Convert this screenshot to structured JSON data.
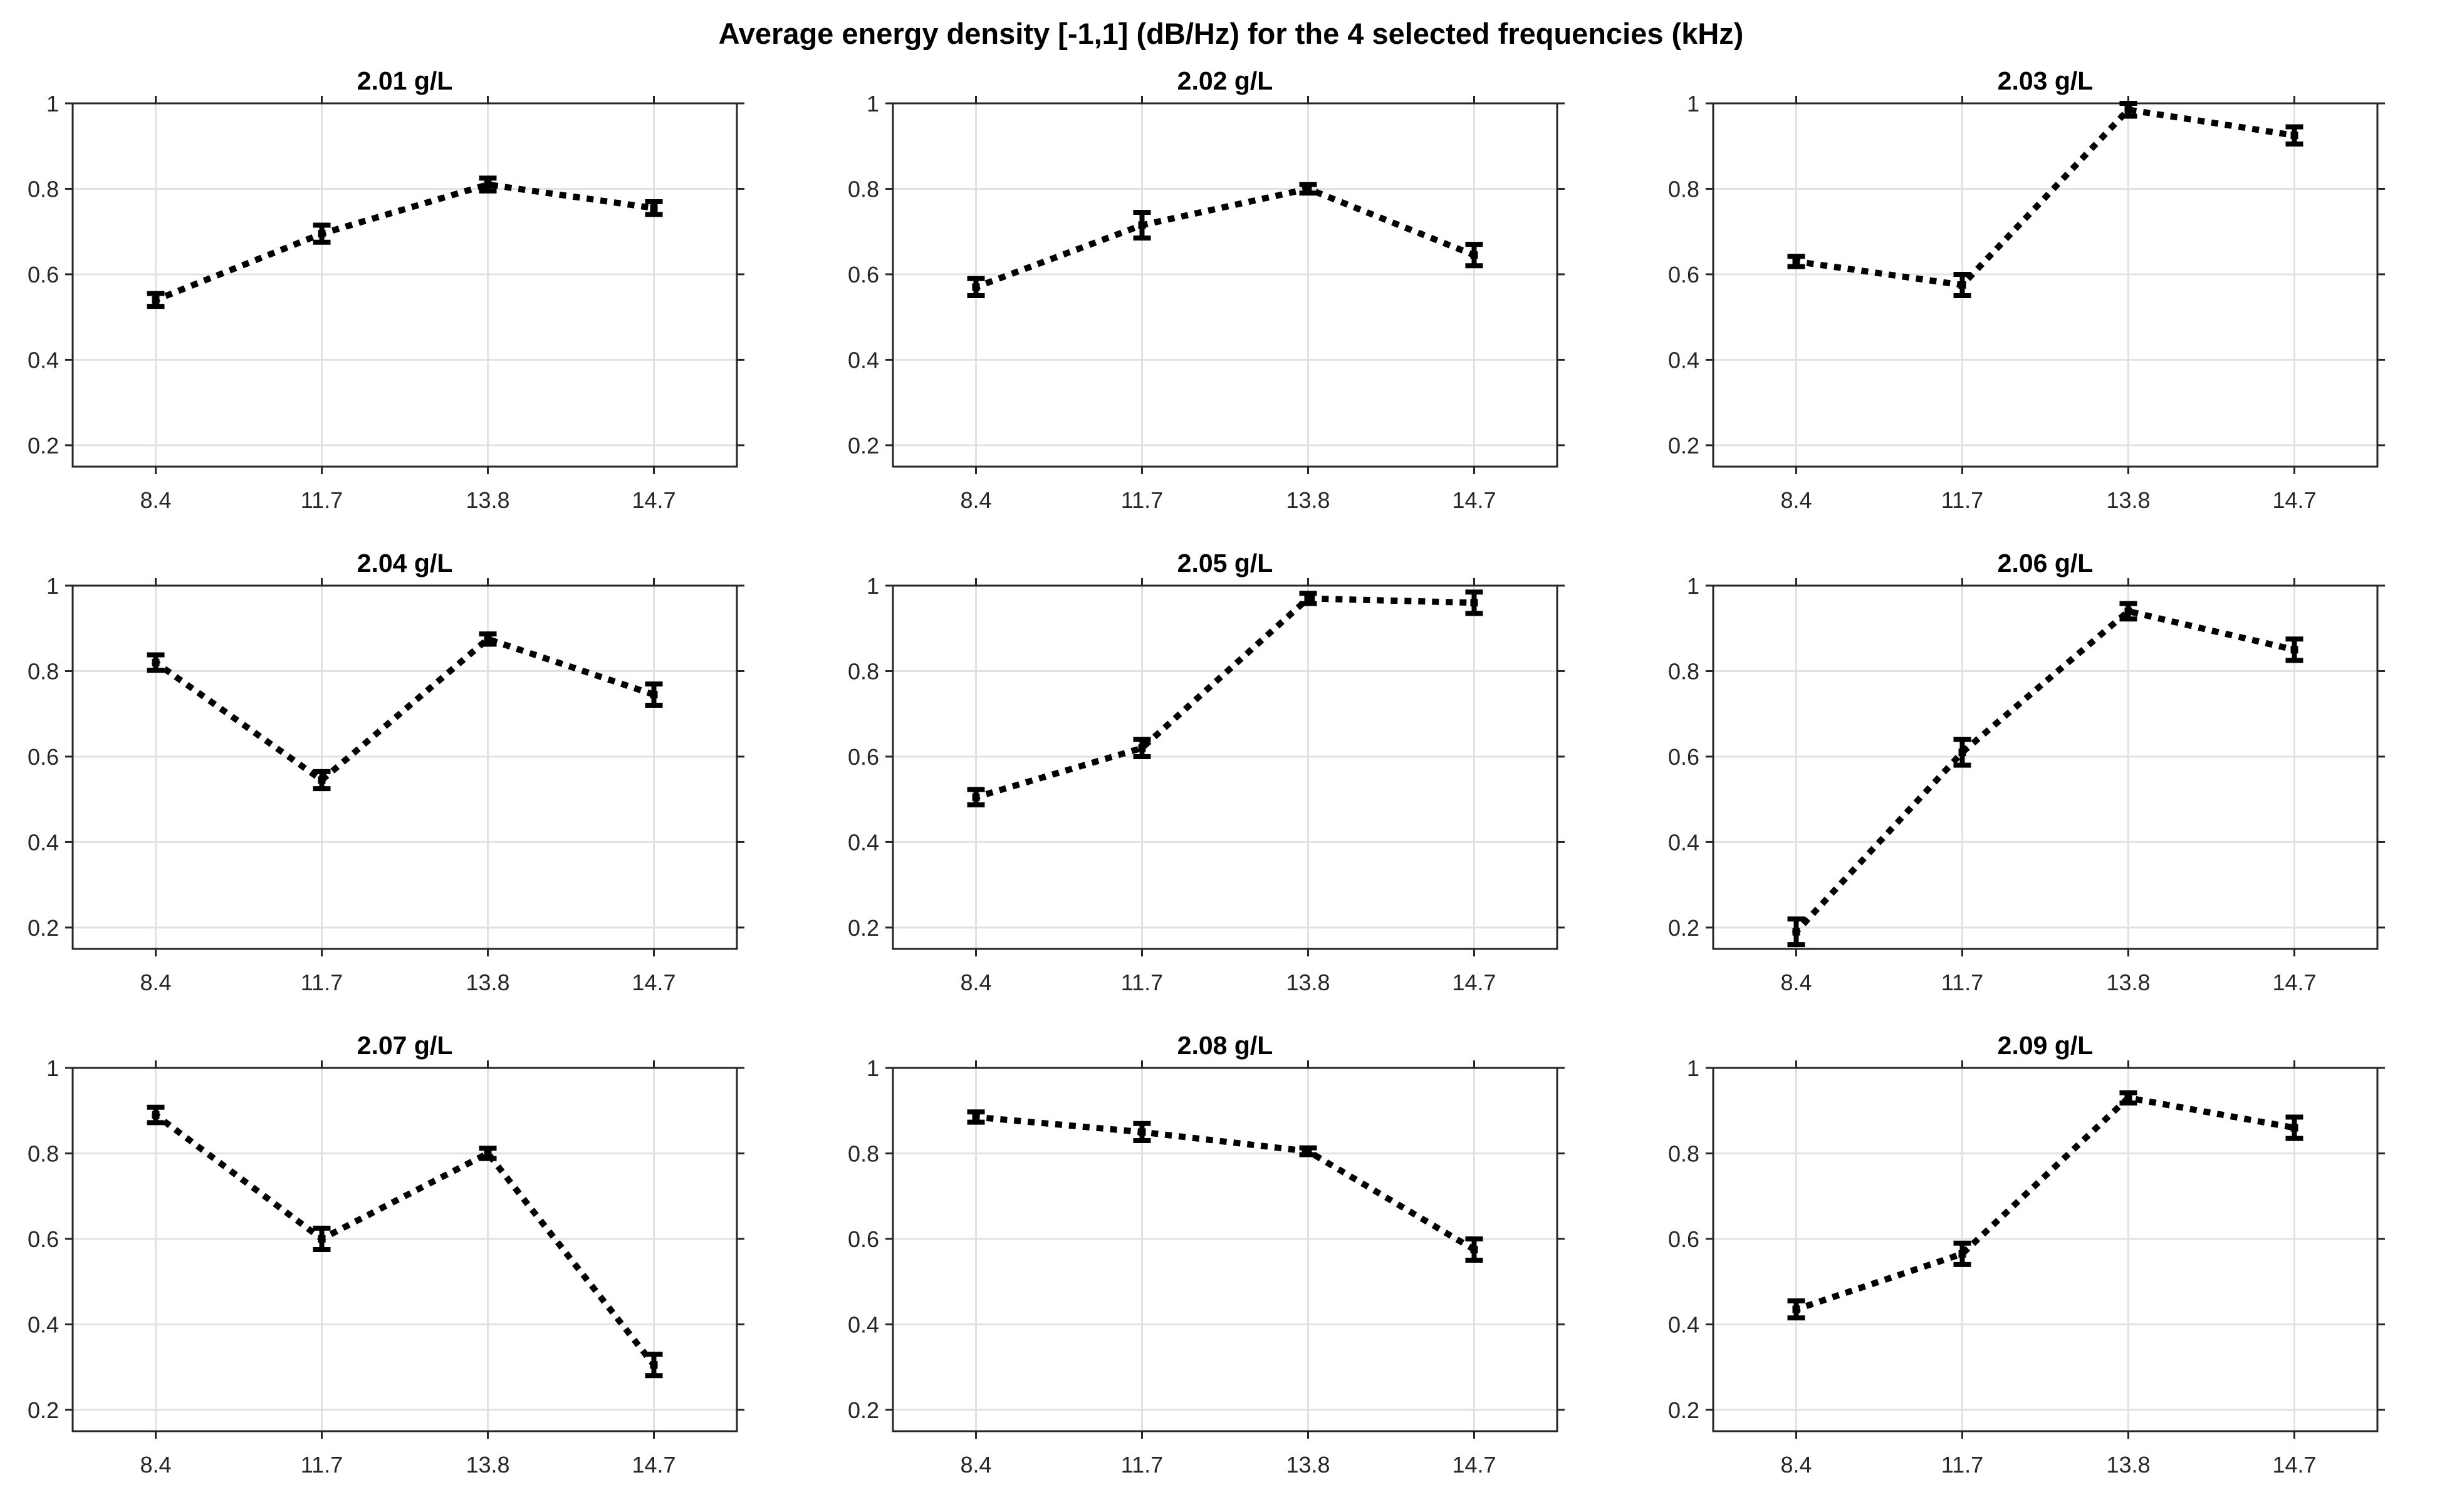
{
  "figure": {
    "title": "Average energy density [-1,1] (dB/Hz) for the 4 selected frequencies (kHz)"
  },
  "chart_data": {
    "type": "line",
    "figure_title": "Average energy density [-1,1] (dB/Hz) for the 4 selected frequencies (kHz)",
    "line_style": "dotted",
    "marker": "errorbar",
    "grid": true,
    "legend": "none",
    "categories": [
      "8.4",
      "11.7",
      "13.8",
      "14.7"
    ],
    "x_unit": "kHz",
    "ylim": [
      0.15,
      1.0
    ],
    "yticks": [
      1,
      0.8,
      0.6,
      0.4,
      0.2
    ],
    "ytick_labels": [
      "1",
      "0.8",
      "0.6",
      "0.4",
      "0.2"
    ],
    "colors": {
      "data": "#000000",
      "axis": "#262626",
      "gridline": "#e2e2e2",
      "tick_label": "#262626",
      "background": "#ffffff"
    },
    "subplots": [
      {
        "title": "2.01 g/L",
        "values": [
          0.54,
          0.695,
          0.81,
          0.755
        ],
        "errors": [
          0.015,
          0.02,
          0.015,
          0.015
        ]
      },
      {
        "title": "2.02 g/L",
        "values": [
          0.57,
          0.715,
          0.8,
          0.645
        ],
        "errors": [
          0.02,
          0.03,
          0.01,
          0.025
        ]
      },
      {
        "title": "2.03 g/L",
        "values": [
          0.63,
          0.575,
          0.985,
          0.925
        ],
        "errors": [
          0.012,
          0.025,
          0.015,
          0.02
        ]
      },
      {
        "title": "2.04 g/L",
        "values": [
          0.82,
          0.545,
          0.875,
          0.745
        ],
        "errors": [
          0.018,
          0.02,
          0.012,
          0.025
        ]
      },
      {
        "title": "2.05 g/L",
        "values": [
          0.505,
          0.62,
          0.97,
          0.96
        ],
        "errors": [
          0.018,
          0.02,
          0.012,
          0.025
        ]
      },
      {
        "title": "2.06 g/L",
        "values": [
          0.19,
          0.61,
          0.94,
          0.85
        ],
        "errors": [
          0.03,
          0.03,
          0.018,
          0.025
        ]
      },
      {
        "title": "2.07 g/L",
        "values": [
          0.89,
          0.6,
          0.8,
          0.305
        ],
        "errors": [
          0.018,
          0.025,
          0.012,
          0.025
        ]
      },
      {
        "title": "2.08 g/L",
        "values": [
          0.885,
          0.85,
          0.805,
          0.575
        ],
        "errors": [
          0.012,
          0.02,
          0.008,
          0.025
        ]
      },
      {
        "title": "2.09 g/L",
        "values": [
          0.435,
          0.565,
          0.93,
          0.86
        ],
        "errors": [
          0.02,
          0.025,
          0.012,
          0.025
        ]
      }
    ]
  }
}
